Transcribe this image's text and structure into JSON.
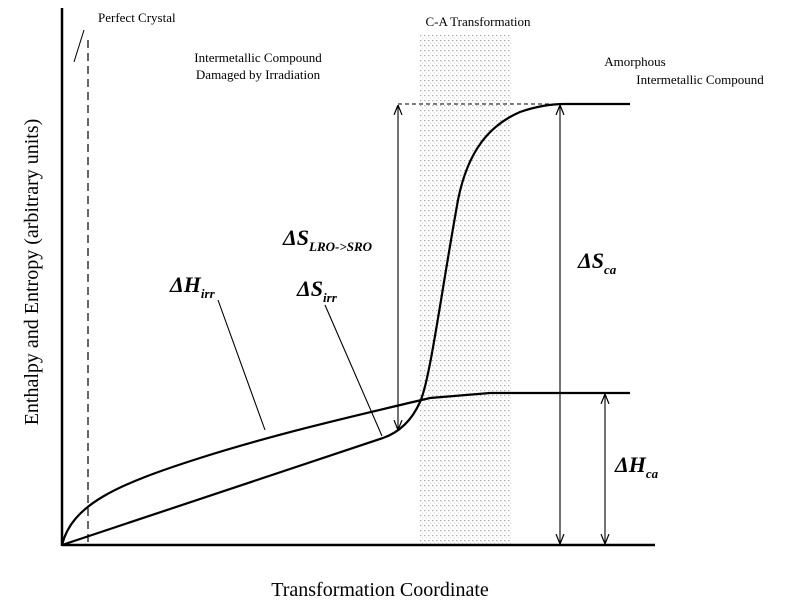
{
  "title_texts": {
    "perfect_crystal": "Perfect Crystal",
    "damaged_line1": "Intermetallic Compound",
    "damaged_line2": "Damaged by Irradiation",
    "transformation": "C-A Transformation",
    "amorphous_line1": "Amorphous",
    "amorphous_line2": "Intermetallic Compound"
  },
  "symbols": {
    "delta_s_lro_sro": {
      "symbol": "ΔS",
      "subscript": "LRO->SRO"
    },
    "delta_s_ca": {
      "symbol": "ΔS",
      "subscript": "ca"
    },
    "delta_h_irr": {
      "symbol": "ΔH",
      "subscript": "irr"
    },
    "delta_s_irr": {
      "symbol": "ΔS",
      "subscript": "irr"
    },
    "delta_h_ca": {
      "symbol": "ΔH",
      "subscript": "ca"
    }
  },
  "axes": {
    "y_label": "Enthalpy and Entropy (arbitrary units)",
    "x_label": "Transformation Coordinate"
  }
}
